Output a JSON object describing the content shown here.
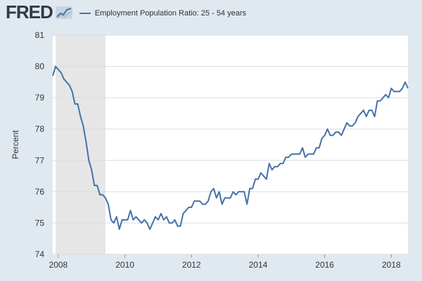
{
  "header": {
    "logo_text": "FRED",
    "legend_label": "Employment Population Ratio: 25 - 54 years"
  },
  "colors": {
    "background": "#e1e9f0",
    "plot_background": "#ffffff",
    "line": "#4572a7",
    "recession": "#e6e6e6",
    "grid": "#d8dde3"
  },
  "chart_data": {
    "type": "line",
    "ylabel": "Percent",
    "xlim": [
      "2007-11",
      "2018-07"
    ],
    "ylim": [
      74,
      81
    ],
    "x_ticks": [
      "2008",
      "2010",
      "2012",
      "2014",
      "2016",
      "2018"
    ],
    "y_ticks": [
      74,
      75,
      76,
      77,
      78,
      79,
      80,
      81
    ],
    "grid": true,
    "recession": {
      "start": "2007-12",
      "end": "2009-06"
    },
    "series": [
      {
        "name": "Employment Population Ratio: 25 - 54 years",
        "points": [
          [
            "2007-11",
            79.7
          ],
          [
            "2007-12",
            80.0
          ],
          [
            "2008-01",
            79.9
          ],
          [
            "2008-02",
            79.8
          ],
          [
            "2008-03",
            79.6
          ],
          [
            "2008-04",
            79.5
          ],
          [
            "2008-05",
            79.4
          ],
          [
            "2008-06",
            79.2
          ],
          [
            "2008-07",
            78.8
          ],
          [
            "2008-08",
            78.8
          ],
          [
            "2008-09",
            78.4
          ],
          [
            "2008-10",
            78.1
          ],
          [
            "2008-11",
            77.6
          ],
          [
            "2008-12",
            77.0
          ],
          [
            "2009-01",
            76.7
          ],
          [
            "2009-02",
            76.2
          ],
          [
            "2009-03",
            76.2
          ],
          [
            "2009-04",
            75.9
          ],
          [
            "2009-05",
            75.9
          ],
          [
            "2009-06",
            75.8
          ],
          [
            "2009-07",
            75.6
          ],
          [
            "2009-08",
            75.1
          ],
          [
            "2009-09",
            75.0
          ],
          [
            "2009-10",
            75.2
          ],
          [
            "2009-11",
            74.8
          ],
          [
            "2009-12",
            75.1
          ],
          [
            "2010-01",
            75.1
          ],
          [
            "2010-02",
            75.1
          ],
          [
            "2010-03",
            75.4
          ],
          [
            "2010-04",
            75.1
          ],
          [
            "2010-05",
            75.2
          ],
          [
            "2010-06",
            75.1
          ],
          [
            "2010-07",
            75.0
          ],
          [
            "2010-08",
            75.1
          ],
          [
            "2010-09",
            75.0
          ],
          [
            "2010-10",
            74.8
          ],
          [
            "2010-11",
            75.0
          ],
          [
            "2010-12",
            75.2
          ],
          [
            "2011-01",
            75.1
          ],
          [
            "2011-02",
            75.3
          ],
          [
            "2011-03",
            75.1
          ],
          [
            "2011-04",
            75.2
          ],
          [
            "2011-05",
            75.0
          ],
          [
            "2011-06",
            75.0
          ],
          [
            "2011-07",
            75.1
          ],
          [
            "2011-08",
            74.9
          ],
          [
            "2011-09",
            74.9
          ],
          [
            "2011-10",
            75.3
          ],
          [
            "2011-11",
            75.4
          ],
          [
            "2011-12",
            75.5
          ],
          [
            "2012-01",
            75.5
          ],
          [
            "2012-02",
            75.7
          ],
          [
            "2012-03",
            75.7
          ],
          [
            "2012-04",
            75.7
          ],
          [
            "2012-05",
            75.6
          ],
          [
            "2012-06",
            75.6
          ],
          [
            "2012-07",
            75.7
          ],
          [
            "2012-08",
            76.0
          ],
          [
            "2012-09",
            76.1
          ],
          [
            "2012-10",
            75.8
          ],
          [
            "2012-11",
            76.0
          ],
          [
            "2012-12",
            75.6
          ],
          [
            "2013-01",
            75.8
          ],
          [
            "2013-02",
            75.8
          ],
          [
            "2013-03",
            75.8
          ],
          [
            "2013-04",
            76.0
          ],
          [
            "2013-05",
            75.9
          ],
          [
            "2013-06",
            76.0
          ],
          [
            "2013-07",
            76.0
          ],
          [
            "2013-08",
            76.0
          ],
          [
            "2013-09",
            75.6
          ],
          [
            "2013-10",
            76.1
          ],
          [
            "2013-11",
            76.1
          ],
          [
            "2013-12",
            76.4
          ],
          [
            "2014-01",
            76.4
          ],
          [
            "2014-02",
            76.6
          ],
          [
            "2014-03",
            76.5
          ],
          [
            "2014-04",
            76.4
          ],
          [
            "2014-05",
            76.9
          ],
          [
            "2014-06",
            76.7
          ],
          [
            "2014-07",
            76.8
          ],
          [
            "2014-08",
            76.8
          ],
          [
            "2014-09",
            76.9
          ],
          [
            "2014-10",
            76.9
          ],
          [
            "2014-11",
            77.1
          ],
          [
            "2014-12",
            77.1
          ],
          [
            "2015-01",
            77.2
          ],
          [
            "2015-02",
            77.2
          ],
          [
            "2015-03",
            77.2
          ],
          [
            "2015-04",
            77.2
          ],
          [
            "2015-05",
            77.4
          ],
          [
            "2015-06",
            77.1
          ],
          [
            "2015-07",
            77.2
          ],
          [
            "2015-08",
            77.2
          ],
          [
            "2015-09",
            77.2
          ],
          [
            "2015-10",
            77.4
          ],
          [
            "2015-11",
            77.4
          ],
          [
            "2015-12",
            77.7
          ],
          [
            "2016-01",
            77.8
          ],
          [
            "2016-02",
            78.0
          ],
          [
            "2016-03",
            77.8
          ],
          [
            "2016-04",
            77.8
          ],
          [
            "2016-05",
            77.9
          ],
          [
            "2016-06",
            77.9
          ],
          [
            "2016-07",
            77.8
          ],
          [
            "2016-08",
            78.0
          ],
          [
            "2016-09",
            78.2
          ],
          [
            "2016-10",
            78.1
          ],
          [
            "2016-11",
            78.1
          ],
          [
            "2016-12",
            78.2
          ],
          [
            "2017-01",
            78.4
          ],
          [
            "2017-02",
            78.5
          ],
          [
            "2017-03",
            78.6
          ],
          [
            "2017-04",
            78.4
          ],
          [
            "2017-05",
            78.6
          ],
          [
            "2017-06",
            78.6
          ],
          [
            "2017-07",
            78.4
          ],
          [
            "2017-08",
            78.9
          ],
          [
            "2017-09",
            78.9
          ],
          [
            "2017-10",
            79.0
          ],
          [
            "2017-11",
            79.1
          ],
          [
            "2017-12",
            79.0
          ],
          [
            "2018-01",
            79.3
          ],
          [
            "2018-02",
            79.2
          ],
          [
            "2018-03",
            79.2
          ],
          [
            "2018-04",
            79.2
          ],
          [
            "2018-05",
            79.3
          ],
          [
            "2018-06",
            79.5
          ],
          [
            "2018-07",
            79.3
          ]
        ]
      }
    ]
  }
}
